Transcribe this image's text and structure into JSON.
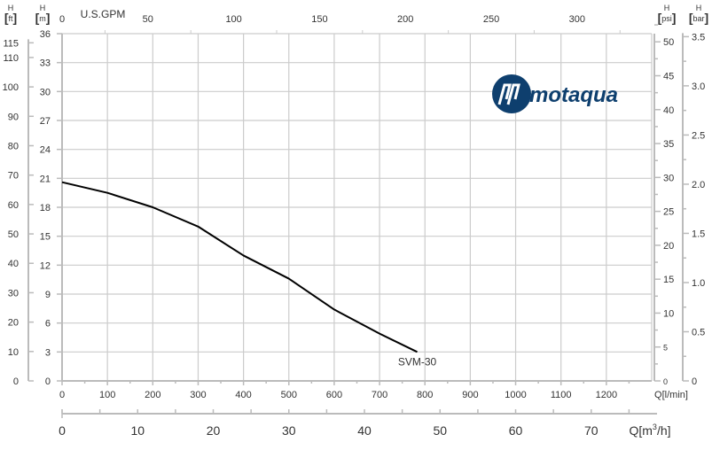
{
  "chart_data": {
    "type": "line",
    "title": "",
    "colors": {
      "curve": "#000000",
      "grid": "#cccccc",
      "axis": "#bbbbbb",
      "logo": "#0e3f6e"
    },
    "grid": true,
    "logo_text": "motaqua",
    "axes": {
      "flow_lpm": {
        "label": "Q[l/min]",
        "range": [
          0,
          1300
        ],
        "ticks": [
          0,
          100,
          200,
          300,
          400,
          500,
          600,
          700,
          800,
          900,
          1000,
          1100,
          1200
        ]
      },
      "flow_m3h": {
        "label": "Q[m³/h]",
        "label_main": "Q[m",
        "label_sup": "3",
        "label_end": "/h]",
        "ticks": [
          0,
          10,
          20,
          30,
          40,
          50,
          60,
          70
        ]
      },
      "flow_gpm": {
        "label": "U.S.GPM",
        "ticks": [
          0,
          50,
          100,
          150,
          200,
          250,
          300
        ]
      },
      "head_m": {
        "label_top": "H",
        "label_unit": "m",
        "range": [
          0,
          36
        ],
        "ticks": [
          0,
          3,
          6,
          9,
          12,
          15,
          18,
          21,
          24,
          27,
          30,
          33,
          36
        ]
      },
      "head_ft": {
        "label_top": "H",
        "label_unit": "ft",
        "ticks": [
          0,
          10,
          20,
          30,
          40,
          50,
          60,
          70,
          80,
          90,
          100,
          110,
          115
        ]
      },
      "head_psi": {
        "label_top": "H",
        "label_unit": "psi",
        "ticks": [
          0,
          5,
          10,
          15,
          20,
          25,
          30,
          35,
          40,
          45,
          50
        ]
      },
      "head_bar": {
        "label_top": "H",
        "label_unit": "bar",
        "ticks": [
          "0",
          "0.5",
          "1.0",
          "1.5",
          "2.0",
          "2.5",
          "3.0",
          "3.5"
        ]
      }
    },
    "series": [
      {
        "name": "SVM-30",
        "x": [
          0,
          100,
          200,
          300,
          400,
          500,
          600,
          700,
          783
        ],
        "y": [
          20.6,
          19.5,
          18.0,
          16.0,
          13.0,
          10.6,
          7.4,
          4.9,
          3.0
        ]
      }
    ]
  }
}
